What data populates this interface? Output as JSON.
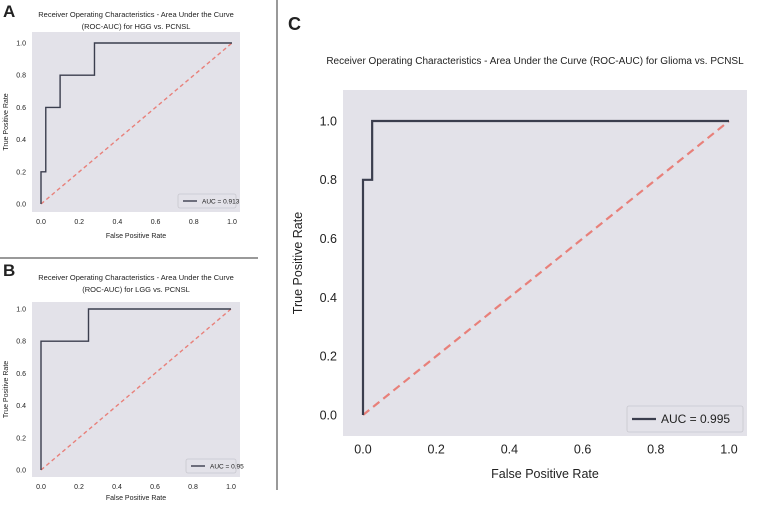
{
  "chart_data": [
    {
      "panel": "A",
      "type": "line",
      "title": "Receiver Operating Characteristics - Area Under the Curve (ROC-AUC) for HGG vs. PCNSL",
      "title_lines": [
        "Receiver Operating Characteristics - Area Under the Curve",
        "(ROC-AUC) for HGG vs. PCNSL"
      ],
      "xlabel": "False Positive Rate",
      "ylabel": "True Positive Rate",
      "xlim": [
        0,
        1
      ],
      "ylim": [
        0,
        1
      ],
      "xticks": [
        "0.0",
        "0.2",
        "0.4",
        "0.6",
        "0.8",
        "1.0"
      ],
      "yticks": [
        "0.0",
        "0.2",
        "0.4",
        "0.6",
        "0.8",
        "1.0"
      ],
      "grid": false,
      "legend": "bottom-right",
      "series": [
        {
          "name": "AUC = 0.913",
          "color": "#3b3e4e",
          "x": [
            0,
            0,
            0.025,
            0.025,
            0.1,
            0.1,
            0.28,
            0.28,
            1
          ],
          "y": [
            0,
            0.2,
            0.2,
            0.6,
            0.6,
            0.8,
            0.8,
            1,
            1
          ]
        },
        {
          "color": "#e8807a",
          "style": "dashed",
          "x": [
            0,
            1
          ],
          "y": [
            0,
            1
          ]
        }
      ]
    },
    {
      "panel": "B",
      "type": "line",
      "title": "Receiver Operating Characteristics - Area Under the Curve (ROC-AUC) for LGG vs. PCNSL",
      "title_lines": [
        "Receiver Operating Characteristics - Area Under the Curve",
        "(ROC-AUC) for LGG vs. PCNSL"
      ],
      "xlabel": "False Positive Rate",
      "ylabel": "True Positive Rate",
      "xlim": [
        0,
        1
      ],
      "ylim": [
        0,
        1
      ],
      "xticks": [
        "0.0",
        "0.2",
        "0.4",
        "0.6",
        "0.8",
        "1.0"
      ],
      "yticks": [
        "0.0",
        "0.2",
        "0.4",
        "0.6",
        "0.8",
        "1.0"
      ],
      "grid": false,
      "legend": "bottom-right",
      "series": [
        {
          "name": "AUC = 0.95",
          "color": "#3b3e4e",
          "x": [
            0,
            0,
            0.25,
            0.25,
            1
          ],
          "y": [
            0,
            0.8,
            0.8,
            1,
            1
          ]
        },
        {
          "color": "#e8807a",
          "style": "dashed",
          "x": [
            0,
            1
          ],
          "y": [
            0,
            1
          ]
        }
      ]
    },
    {
      "panel": "C",
      "type": "line",
      "title": "Receiver Operating Characteristics - Area Under the Curve (ROC-AUC) for Glioma vs. PCNSL",
      "title_lines": [
        "Receiver Operating Characteristics - Area Under the Curve (ROC-AUC) for Glioma vs. PCNSL"
      ],
      "xlabel": "False Positive Rate",
      "ylabel": "True Positive Rate",
      "xlim": [
        0,
        1
      ],
      "ylim": [
        0,
        1
      ],
      "xticks": [
        "0.0",
        "0.2",
        "0.4",
        "0.6",
        "0.8",
        "1.0"
      ],
      "yticks": [
        "0.0",
        "0.2",
        "0.4",
        "0.6",
        "0.8",
        "1.0"
      ],
      "grid": false,
      "legend": "bottom-right",
      "series": [
        {
          "name": "AUC = 0.995",
          "color": "#3b3e4e",
          "x": [
            0,
            0,
            0.025,
            0.025,
            1
          ],
          "y": [
            0,
            0.8,
            0.8,
            1,
            1
          ]
        },
        {
          "color": "#e8807a",
          "style": "dashed",
          "x": [
            0,
            1
          ],
          "y": [
            0,
            1
          ]
        }
      ]
    }
  ],
  "colors": {
    "plot_background": "#e3e2e9",
    "divider": "#333333"
  }
}
